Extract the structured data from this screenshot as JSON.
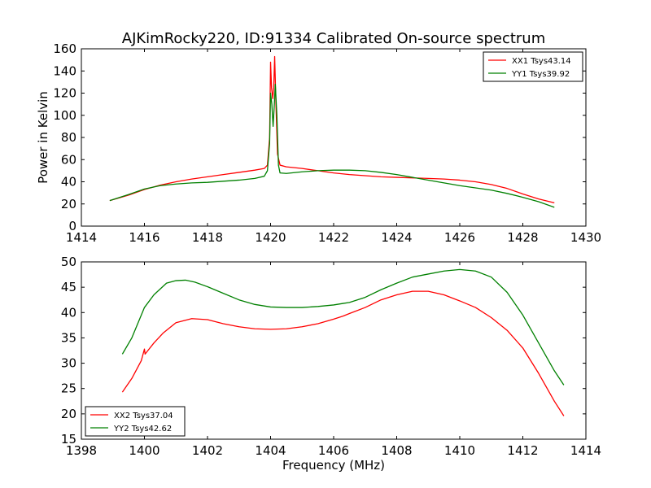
{
  "figure": {
    "title": "AJKimRocky220, ID:91334 Calibrated On-source spectrum"
  },
  "colors": {
    "red": "#ff0000",
    "green": "#008000"
  },
  "chart_data": [
    {
      "type": "line",
      "title": "AJKimRocky220, ID:91334 Calibrated On-source spectrum",
      "xlabel": "",
      "ylabel": "Power in Kelvin",
      "xlim": [
        1414,
        1430
      ],
      "ylim": [
        0,
        160
      ],
      "xticks": [
        1414,
        1416,
        1418,
        1420,
        1422,
        1424,
        1426,
        1428,
        1430
      ],
      "yticks": [
        0,
        20,
        40,
        60,
        80,
        100,
        120,
        140,
        160
      ],
      "legend_position": "top-right",
      "grid": false,
      "series": [
        {
          "name": "XX1 Tsys43.14",
          "color": "#ff0000",
          "points": [
            [
              1414.9,
              23
            ],
            [
              1415.5,
              28
            ],
            [
              1416,
              33
            ],
            [
              1416.5,
              37
            ],
            [
              1417,
              40
            ],
            [
              1417.5,
              42.5
            ],
            [
              1418,
              44.5
            ],
            [
              1418.5,
              46.5
            ],
            [
              1419,
              48.5
            ],
            [
              1419.5,
              50.5
            ],
            [
              1419.8,
              52
            ],
            [
              1419.9,
              55
            ],
            [
              1419.97,
              80
            ],
            [
              1420.0,
              148
            ],
            [
              1420.03,
              125
            ],
            [
              1420.07,
              115
            ],
            [
              1420.1,
              125
            ],
            [
              1420.13,
              153
            ],
            [
              1420.17,
              110
            ],
            [
              1420.22,
              65
            ],
            [
              1420.3,
              55
            ],
            [
              1420.5,
              53.5
            ],
            [
              1421,
              52
            ],
            [
              1421.5,
              50
            ],
            [
              1422,
              48
            ],
            [
              1422.5,
              46.5
            ],
            [
              1423,
              45.5
            ],
            [
              1423.5,
              44.5
            ],
            [
              1424,
              44
            ],
            [
              1424.5,
              43.5
            ],
            [
              1425,
              43
            ],
            [
              1425.5,
              42.5
            ],
            [
              1426,
              41.5
            ],
            [
              1426.5,
              40
            ],
            [
              1427,
              37.5
            ],
            [
              1427.5,
              34
            ],
            [
              1428,
              29
            ],
            [
              1428.5,
              24.5
            ],
            [
              1429,
              21
            ]
          ]
        },
        {
          "name": "YY1 Tsys39.92",
          "color": "#008000",
          "points": [
            [
              1414.9,
              23
            ],
            [
              1415.5,
              28.5
            ],
            [
              1416,
              33.5
            ],
            [
              1416.5,
              36.5
            ],
            [
              1417,
              38
            ],
            [
              1417.5,
              39
            ],
            [
              1418,
              39.5
            ],
            [
              1418.5,
              40.5
            ],
            [
              1419,
              41.5
            ],
            [
              1419.5,
              43
            ],
            [
              1419.8,
              45
            ],
            [
              1419.9,
              50
            ],
            [
              1419.97,
              75
            ],
            [
              1420.0,
              120
            ],
            [
              1420.04,
              110
            ],
            [
              1420.08,
              90
            ],
            [
              1420.12,
              110
            ],
            [
              1420.15,
              128
            ],
            [
              1420.2,
              100
            ],
            [
              1420.25,
              55
            ],
            [
              1420.3,
              48
            ],
            [
              1420.5,
              47.5
            ],
            [
              1421,
              49
            ],
            [
              1421.5,
              50
            ],
            [
              1422,
              50.5
            ],
            [
              1422.5,
              50.5
            ],
            [
              1423,
              50
            ],
            [
              1423.5,
              48.5
            ],
            [
              1424,
              46.5
            ],
            [
              1424.5,
              44
            ],
            [
              1425,
              41.5
            ],
            [
              1425.5,
              39
            ],
            [
              1426,
              36.5
            ],
            [
              1426.5,
              34.5
            ],
            [
              1427,
              32.5
            ],
            [
              1427.5,
              29.5
            ],
            [
              1428,
              26
            ],
            [
              1428.5,
              22
            ],
            [
              1429,
              17
            ]
          ]
        }
      ]
    },
    {
      "type": "line",
      "title": "",
      "xlabel": "Frequency (MHz)",
      "ylabel": "",
      "xlim": [
        1398,
        1414
      ],
      "ylim": [
        15,
        50
      ],
      "xticks": [
        1398,
        1400,
        1402,
        1404,
        1406,
        1408,
        1410,
        1412,
        1414
      ],
      "yticks": [
        15,
        20,
        25,
        30,
        35,
        40,
        45,
        50
      ],
      "legend_position": "bottom-left",
      "grid": false,
      "series": [
        {
          "name": "XX2 Tsys37.04",
          "color": "#ff0000",
          "points": [
            [
              1399.3,
              24.3
            ],
            [
              1399.6,
              27
            ],
            [
              1399.9,
              30.5
            ],
            [
              1400,
              32.8
            ],
            [
              1400.02,
              31.8
            ],
            [
              1400.3,
              34
            ],
            [
              1400.6,
              36
            ],
            [
              1401,
              38
            ],
            [
              1401.5,
              38.8
            ],
            [
              1402,
              38.6
            ],
            [
              1402.5,
              37.8
            ],
            [
              1403,
              37.2
            ],
            [
              1403.5,
              36.8
            ],
            [
              1404,
              36.7
            ],
            [
              1404.5,
              36.8
            ],
            [
              1405,
              37.2
            ],
            [
              1405.5,
              37.8
            ],
            [
              1406,
              38.7
            ],
            [
              1406.3,
              39.3
            ],
            [
              1406.5,
              39.8
            ],
            [
              1407,
              41
            ],
            [
              1407.5,
              42.5
            ],
            [
              1408,
              43.5
            ],
            [
              1408.5,
              44.2
            ],
            [
              1409,
              44.2
            ],
            [
              1409.5,
              43.5
            ],
            [
              1410,
              42.3
            ],
            [
              1410.5,
              41
            ],
            [
              1411,
              39
            ],
            [
              1411.5,
              36.5
            ],
            [
              1412,
              33
            ],
            [
              1412.5,
              28
            ],
            [
              1413,
              22.5
            ],
            [
              1413.3,
              19.6
            ]
          ]
        },
        {
          "name": "YY2 Tsys42.62",
          "color": "#008000",
          "points": [
            [
              1399.3,
              31.8
            ],
            [
              1399.6,
              35
            ],
            [
              1400,
              41
            ],
            [
              1400.3,
              43.5
            ],
            [
              1400.7,
              45.8
            ],
            [
              1401,
              46.3
            ],
            [
              1401.3,
              46.4
            ],
            [
              1401.6,
              46
            ],
            [
              1402,
              45.1
            ],
            [
              1402.5,
              43.8
            ],
            [
              1403,
              42.5
            ],
            [
              1403.5,
              41.6
            ],
            [
              1404,
              41.1
            ],
            [
              1404.5,
              41
            ],
            [
              1405,
              41
            ],
            [
              1405.5,
              41.2
            ],
            [
              1406,
              41.5
            ],
            [
              1406.3,
              41.8
            ],
            [
              1406.5,
              42
            ],
            [
              1407,
              43
            ],
            [
              1407.5,
              44.5
            ],
            [
              1408,
              45.8
            ],
            [
              1408.5,
              47
            ],
            [
              1409,
              47.6
            ],
            [
              1409.5,
              48.2
            ],
            [
              1410,
              48.5
            ],
            [
              1410.5,
              48.2
            ],
            [
              1411,
              47
            ],
            [
              1411.5,
              44
            ],
            [
              1412,
              39.5
            ],
            [
              1412.5,
              34
            ],
            [
              1413,
              28.5
            ],
            [
              1413.3,
              25.7
            ]
          ]
        }
      ]
    }
  ]
}
